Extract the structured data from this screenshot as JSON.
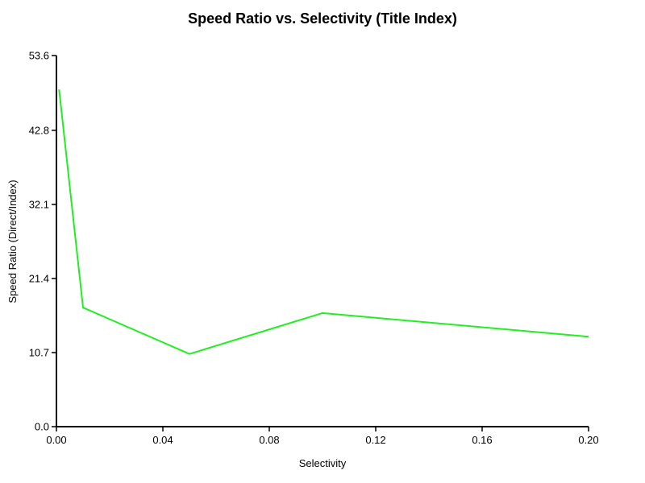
{
  "chart_data": {
    "type": "line",
    "title": "Speed Ratio vs. Selectivity (Title Index)",
    "xlabel": "Selectivity",
    "ylabel": "Speed Ratio (Direct/Index)",
    "xlim": [
      0.0,
      0.2
    ],
    "ylim": [
      0.0,
      53.6
    ],
    "x_ticks": [
      "0.00",
      "0.04",
      "0.08",
      "0.12",
      "0.16",
      "0.20"
    ],
    "y_ticks": [
      "0.0",
      "10.7",
      "21.4",
      "32.1",
      "42.8",
      "53.6"
    ],
    "grid": false,
    "legend": "none",
    "series": [
      {
        "color": "#22ee22",
        "x": [
          0.001,
          0.01,
          0.05,
          0.1,
          0.2
        ],
        "y": [
          48.7,
          17.2,
          10.5,
          16.4,
          13.0
        ]
      }
    ]
  }
}
